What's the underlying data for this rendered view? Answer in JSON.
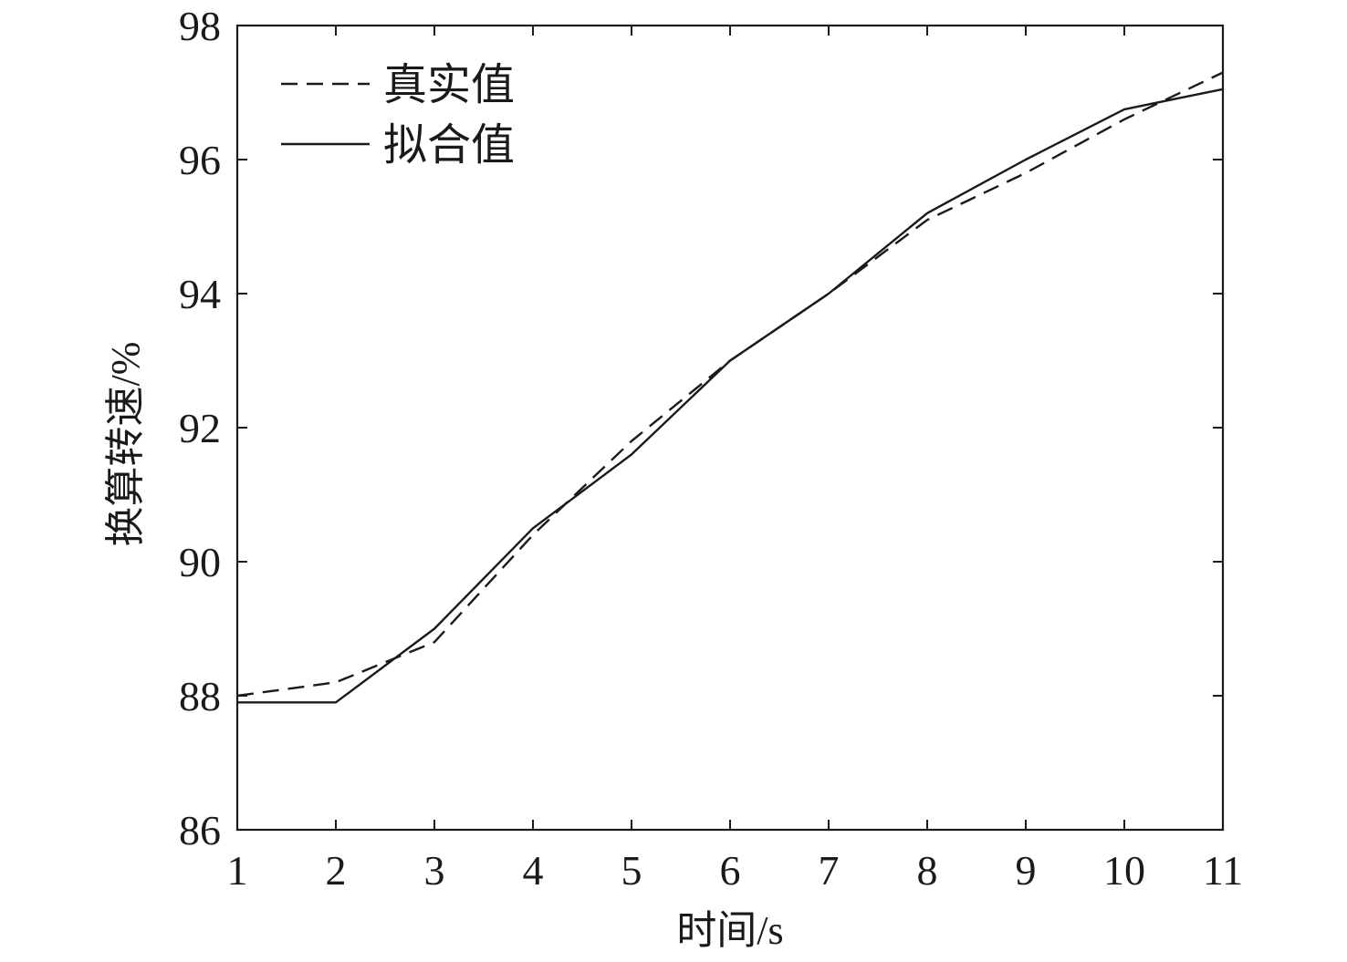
{
  "chart_data": {
    "type": "line",
    "title": "",
    "xlabel": "时间/s",
    "ylabel": "换算转速/%",
    "xlim": [
      1,
      11
    ],
    "ylim": [
      86,
      98
    ],
    "xticks": [
      "1",
      "2",
      "3",
      "4",
      "5",
      "6",
      "7",
      "8",
      "9",
      "10",
      "11"
    ],
    "yticks": [
      "86",
      "88",
      "90",
      "92",
      "94",
      "96",
      "98"
    ],
    "grid": false,
    "legend_position": "top-left",
    "series": [
      {
        "name": "真实值",
        "style": "dashed",
        "color": "#1a1a1a",
        "x": [
          1,
          2,
          3,
          4,
          5,
          6,
          7,
          8,
          9,
          10,
          11
        ],
        "y": [
          88.0,
          88.2,
          88.8,
          90.4,
          91.8,
          93.0,
          94.0,
          95.1,
          95.8,
          96.6,
          97.3
        ]
      },
      {
        "name": "拟合值",
        "style": "solid",
        "color": "#1a1a1a",
        "x": [
          1,
          2,
          3,
          4,
          5,
          6,
          7,
          8,
          9,
          10,
          10.5,
          11
        ],
        "y": [
          87.9,
          87.9,
          89.0,
          90.5,
          91.6,
          93.0,
          94.0,
          95.2,
          96.0,
          96.75,
          96.9,
          97.05
        ]
      }
    ]
  }
}
